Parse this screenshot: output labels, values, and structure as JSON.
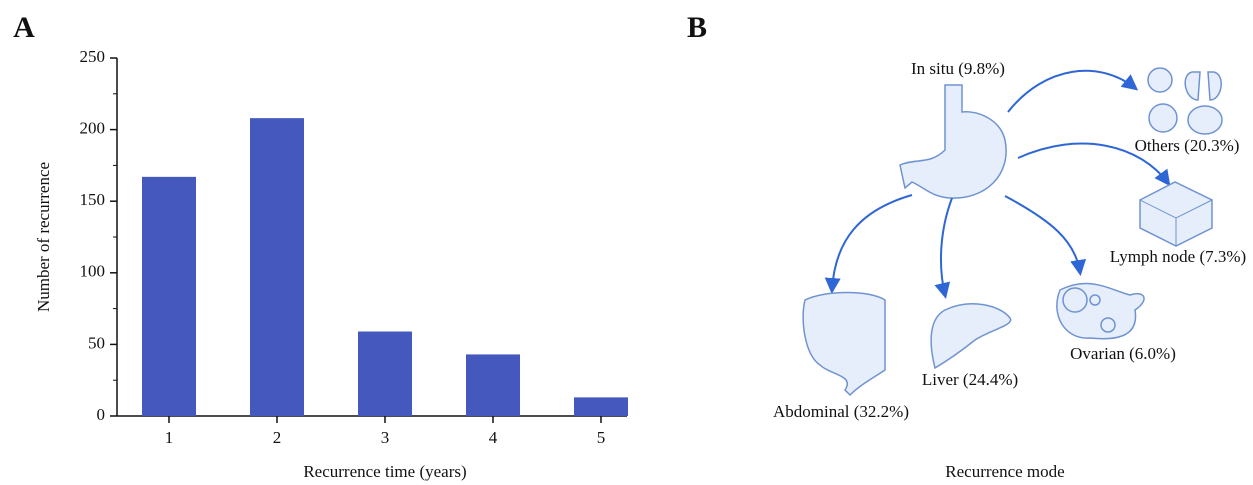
{
  "panel_labels": [
    "A",
    "B"
  ],
  "chart_data": {
    "type": "bar",
    "xlabel": "Recurrence time (years)",
    "ylabel": "Number of recurrence",
    "categories": [
      "1",
      "2",
      "3",
      "4",
      "5"
    ],
    "values": [
      167,
      208,
      59,
      43,
      13
    ],
    "color": "#4458bd",
    "ylim": [
      0,
      250
    ],
    "yticks": [
      0,
      50,
      100,
      150,
      200,
      250
    ],
    "grid": false
  },
  "diagram": {
    "title": "Recurrence mode",
    "nodes": [
      {
        "label": "In situ (9.8%)"
      },
      {
        "label": "Others (20.3%)"
      },
      {
        "label": "Lymph node (7.3%)"
      },
      {
        "label": "Ovarian (6.0%)"
      },
      {
        "label": "Liver (24.4%)"
      },
      {
        "label": "Abdominal (32.2%)"
      }
    ]
  }
}
